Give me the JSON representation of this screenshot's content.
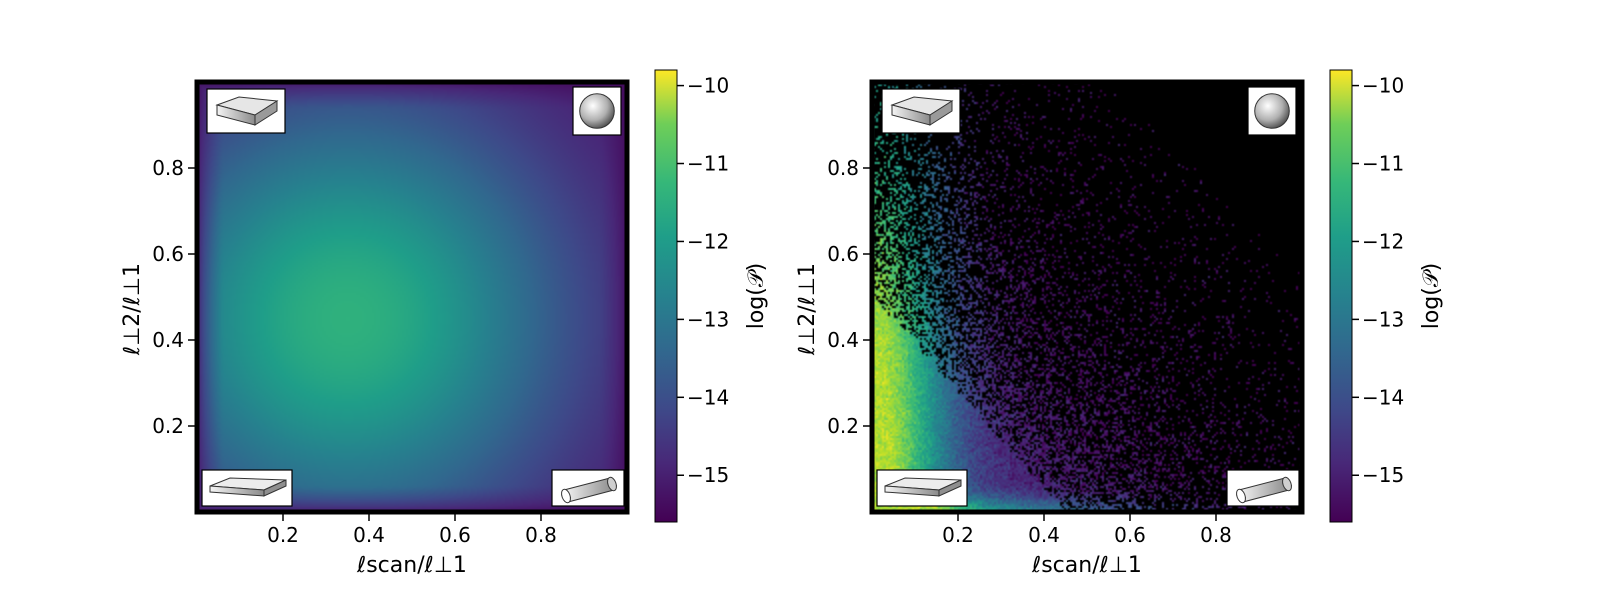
{
  "chart_data": [
    {
      "type": "heatmap",
      "xlabel": "ℓscan/ℓ⊥1",
      "ylabel": "ℓ⊥2/ℓ⊥1",
      "xlim": [
        0,
        1
      ],
      "ylim": [
        0,
        1
      ],
      "x_ticks": [
        0.2,
        0.4,
        0.6,
        0.8
      ],
      "y_ticks": [
        0.2,
        0.4,
        0.6,
        0.8
      ],
      "colorbar": {
        "label": "log(𝒫)",
        "colormap": "viridis",
        "range": [
          -15.6,
          -9.8
        ],
        "ticks": [
          -10,
          -11,
          -12,
          -13,
          -14,
          -15
        ]
      },
      "background_color": "#000000",
      "field": {
        "shape": "smooth-broad",
        "peak": {
          "x": 0.35,
          "y": 0.45,
          "value": -11.9
        },
        "edge_value": -15.5
      },
      "corner_icons": {
        "top_left": "flat-slab-icon",
        "top_right": "sphere-icon",
        "bottom_left": "thin-plate-icon",
        "bottom_right": "cylinder-icon"
      }
    },
    {
      "type": "heatmap",
      "xlabel": "ℓscan/ℓ⊥1",
      "ylabel": "ℓ⊥2/ℓ⊥1",
      "xlim": [
        0,
        1
      ],
      "ylim": [
        0,
        1
      ],
      "x_ticks": [
        0.2,
        0.4,
        0.6,
        0.8
      ],
      "y_ticks": [
        0.2,
        0.4,
        0.6,
        0.8
      ],
      "colorbar": {
        "label": "log(𝒫)",
        "colormap": "viridis",
        "range": [
          -15.6,
          -9.8
        ],
        "ticks": [
          -10,
          -11,
          -12,
          -13,
          -14,
          -15
        ]
      },
      "background_color": "#000000",
      "field": {
        "shape": "noisy-corner-band",
        "peak": {
          "x": 0.08,
          "y": 0.32,
          "value": -10.5
        },
        "edge_value": -15.5
      },
      "corner_icons": {
        "top_left": "flat-slab-icon",
        "top_right": "sphere-icon",
        "bottom_left": "thin-plate-icon",
        "bottom_right": "cylinder-icon"
      }
    }
  ]
}
